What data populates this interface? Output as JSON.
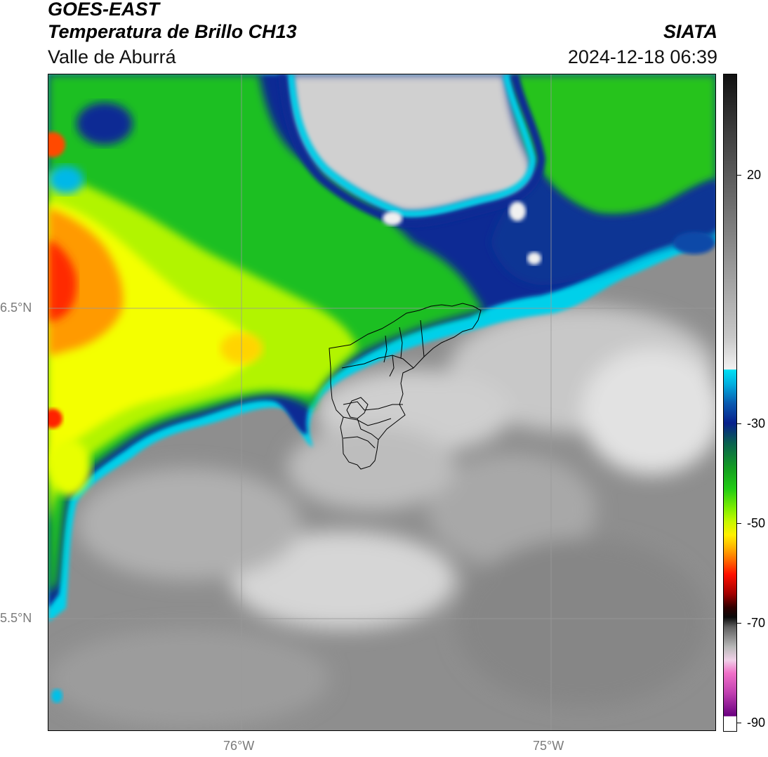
{
  "header": {
    "satellite": "GOES-EAST",
    "product": "Temperatura de Brillo CH13",
    "region": "Valle de Aburrá",
    "agency": "SIATA",
    "timestamp": "2024-12-18 06:39"
  },
  "axes": {
    "lat_labels": [
      "6.5°N",
      "5.5°N"
    ],
    "lon_labels": [
      "76°W",
      "75°W"
    ]
  },
  "colorbar": {
    "tick_labels": [
      "20",
      "-30",
      "-50",
      "-70",
      "-90"
    ],
    "colors": {
      "warm_gray_top": "#111111",
      "light_gray": "#e6e6e6",
      "cyan": "#00d8f0",
      "dark_blue": "#06208a",
      "green": "#12b41c",
      "yellow_green": "#aaff00",
      "yellow": "#fff000",
      "orange": "#ff8c00",
      "red": "#ff0000",
      "dark_red": "#300000",
      "pink": "#f070c8",
      "purple": "#6a0080"
    }
  },
  "map": {
    "colors": {
      "cloud_free_gray": "#8c8c8c",
      "low_cloud_light": "#d8d8d8",
      "cold_top_green": "#22c020",
      "very_cold_yellow": "#e8ff00",
      "coldest_red": "#ff3000",
      "edge_blue": "#08248e",
      "edge_cyan": "#00cce8",
      "boundary": "#000000",
      "gridline": "#9a9a9a"
    }
  }
}
